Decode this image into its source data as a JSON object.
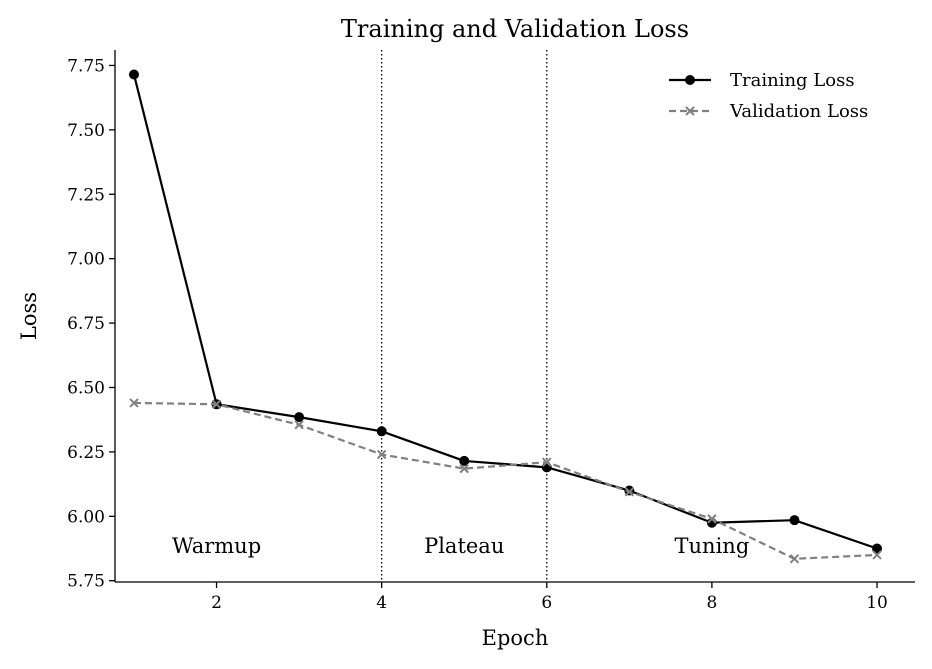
{
  "chart_data": {
    "type": "line",
    "title": "Training and Validation Loss",
    "xlabel": "Epoch",
    "ylabel": "Loss",
    "xlim": [
      0.77,
      10.46
    ],
    "ylim": [
      5.745,
      7.81
    ],
    "xticks": [
      2,
      4,
      6,
      8,
      10
    ],
    "yticks": [
      5.75,
      6.0,
      6.25,
      6.5,
      6.75,
      7.0,
      7.25,
      7.5,
      7.75
    ],
    "ytick_labels": [
      "5.75",
      "6.00",
      "6.25",
      "6.50",
      "6.75",
      "7.00",
      "7.25",
      "7.50",
      "7.75"
    ],
    "x": [
      1,
      2,
      3,
      4,
      5,
      6,
      7,
      8,
      9,
      10
    ],
    "series": [
      {
        "name": "Training Loss",
        "values": [
          7.715,
          6.435,
          6.385,
          6.33,
          6.215,
          6.19,
          6.1,
          5.975,
          5.985,
          5.875
        ],
        "color": "#000000",
        "style": "solid",
        "marker": "circle"
      },
      {
        "name": "Validation Loss",
        "values": [
          6.44,
          6.435,
          6.355,
          6.24,
          6.185,
          6.21,
          6.095,
          5.99,
          5.835,
          5.85
        ],
        "color": "#808080",
        "style": "dashed",
        "marker": "x"
      }
    ],
    "vlines": [
      4,
      6
    ],
    "regions": [
      {
        "label": "Warmup",
        "x": 2.0,
        "y": 5.885
      },
      {
        "label": "Plateau",
        "x": 5.0,
        "y": 5.885
      },
      {
        "label": "Tuning",
        "x": 8.0,
        "y": 5.885
      }
    ],
    "legend_position": "top-right",
    "grid": false
  }
}
